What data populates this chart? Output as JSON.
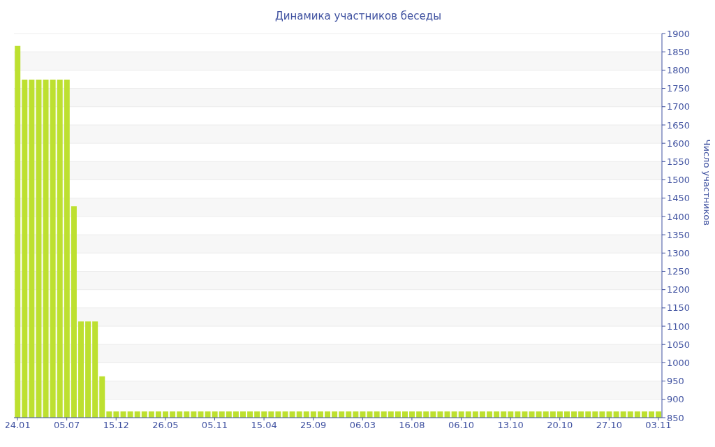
{
  "chart_data": {
    "type": "bar",
    "title": "Динамика участников беседы",
    "ylabel": "Число участников",
    "categories": [
      "24.01",
      null,
      null,
      null,
      null,
      null,
      null,
      "05.07",
      null,
      null,
      null,
      null,
      null,
      null,
      "15.12",
      null,
      null,
      null,
      null,
      null,
      null,
      "26.05",
      null,
      null,
      null,
      null,
      null,
      null,
      "05.11",
      null,
      null,
      null,
      null,
      null,
      null,
      "15.04",
      null,
      null,
      null,
      null,
      null,
      null,
      "25.09",
      null,
      null,
      null,
      null,
      null,
      null,
      "06.03",
      null,
      null,
      null,
      null,
      null,
      null,
      "16.08",
      null,
      null,
      null,
      null,
      null,
      null,
      "06.10",
      null,
      null,
      null,
      null,
      null,
      null,
      "13.10",
      null,
      null,
      null,
      null,
      null,
      null,
      "20.10",
      null,
      null,
      null,
      null,
      null,
      null,
      "27.10",
      null,
      null,
      null,
      null,
      null,
      null,
      "03.11"
    ],
    "values": [
      1866,
      1774,
      1774,
      1774,
      1774,
      1774,
      1774,
      1774,
      1428,
      1113,
      1113,
      1113,
      963,
      867,
      867,
      867,
      867,
      867,
      867,
      867,
      867,
      867,
      867,
      867,
      867,
      867,
      867,
      867,
      867,
      867,
      867,
      867,
      867,
      867,
      867,
      867,
      867,
      867,
      867,
      867,
      867,
      867,
      867,
      867,
      867,
      867,
      867,
      867,
      867,
      867,
      867,
      867,
      867,
      867,
      867,
      867,
      867,
      867,
      867,
      867,
      867,
      867,
      867,
      867,
      867,
      867,
      867,
      867,
      867,
      867,
      867,
      867,
      867,
      867,
      867,
      867,
      867,
      867,
      867,
      867,
      867,
      867,
      867,
      867,
      867,
      867,
      867,
      867,
      867,
      867,
      867,
      867
    ],
    "color": "#bde030",
    "ylim": [
      850,
      1900
    ],
    "yticks": [
      850,
      900,
      950,
      1000,
      1050,
      1100,
      1150,
      1200,
      1250,
      1300,
      1350,
      1400,
      1450,
      1500,
      1550,
      1600,
      1650,
      1700,
      1750,
      1800,
      1850,
      1900
    ],
    "grid": "y"
  }
}
